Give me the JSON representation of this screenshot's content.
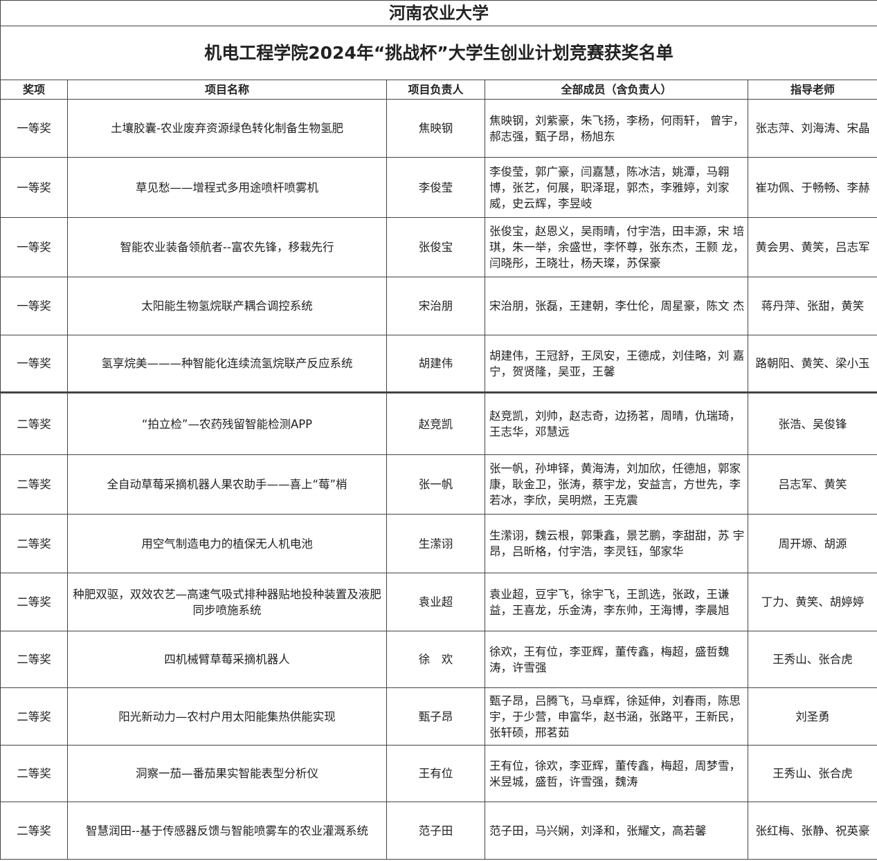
{
  "university": "河南农业大学",
  "title": "机电工程学院2024年“挑战杯”大学生创业计划竞赛获奖名单",
  "headers": [
    "奖项",
    "项目名称",
    "项目负责人",
    "全部成员（含负责人）",
    "指导老师"
  ],
  "rows": [
    {
      "award": "一等奖",
      "project": "土壤胶囊-农业废弃资源绿色转化制备生物氢肥",
      "leader": "焦映钢",
      "members": "焦映钢，刘紫豪，朱飞扬，李杨，何雨轩， 曾宇，郝志强，甄子昂，杨旭东",
      "advisors": "张志萍、刘海涛、宋晶"
    },
    {
      "award": "一等奖",
      "project": "草见愁——增程式多用途喷杆喷雾机",
      "leader": "李俊莹",
      "members": "李俊莹，郭广豪，闫嘉慧，陈冰洁，姚潭，马翱 博，张艺，何展，职泽琨，郭杰，李雅婷，刘家 威，史云辉，李昱岐",
      "advisors": "崔功佩、于畅畅、李赫"
    },
    {
      "award": "一等奖",
      "project": "智能农业装备领航者--富农先锋，移栽先行",
      "leader": "张俊宝",
      "members": "张俊宝，赵恩义，吴雨晴，付宇浩，田丰源，宋 培琪，朱一举，余盛世，李怀尊，张东杰，王颢 龙，闫晓彤，王晓壮，杨天璨，苏保豪",
      "advisors": "黄会男、黄笑，吕志军"
    },
    {
      "award": "一等奖",
      "project": "太阳能生物氢烷联产耦合调控系统",
      "leader": "宋治朋",
      "members": "宋治朋，张磊，王建朝，李仕伦，周星豪，陈文 杰",
      "advisors": "蒋丹萍、张甜，黄笑"
    },
    {
      "award": "一等奖",
      "project": "氢享烷美———种智能化连续流氢烷联产反应系统",
      "leader": "胡建伟",
      "members": "胡建伟，王冠舒，王凤安，王德成，刘佳略，刘 嘉宁，贺贤隆，吴亚，王馨",
      "advisors": "路朝阳、黄笑、梁小玉"
    },
    {
      "award": "二等奖",
      "project": "“拍立检”—农药残留智能检测APP",
      "leader": "赵竞凯",
      "members": "赵竞凯，刘帅，赵志奇，边扬茗，周晴，仇瑞琦，王志华，邓慧远",
      "advisors": "张浩、吴俊锋"
    },
    {
      "award": "二等奖",
      "project": "全自动草莓采摘机器人果农助手——喜上“莓”梢",
      "leader": "张一帆",
      "members": "张一帆，孙坤铎，黄海涛，刘加欣，任德旭，郭家康，耿金卫，张涛，蔡宇龙，安益言，方世先，李若冰，李欣，吴明燃，王克震",
      "advisors": "吕志军、黄笑"
    },
    {
      "award": "二等奖",
      "project": "用空气制造电力的植保无人机电池",
      "leader": "生潆诩",
      "members": "生潆诩，魏云根，郭秉鑫，景艺鹏，李甜甜，苏 宇昂，吕昕格，付宇浩，李灵钰，邹家华",
      "advisors": "周开塬、胡源"
    },
    {
      "award": "二等奖",
      "project": "种肥双驱，双效农艺—高速气吸式排种器贴地投种装置及液肥同步喷施系统",
      "leader": "袁业超",
      "members": "袁业超，豆宇飞，徐宇飞，王凯选，张政，王谦益，王喜龙，乐金涛，李东帅，王海博，李晨旭",
      "advisors": "丁力、黄笑、胡婷婷"
    },
    {
      "award": "二等奖",
      "project": "四机械臂草莓采摘机器人",
      "leader": "徐　欢",
      "members": "徐欢，王有位，李亚辉，董传鑫，梅超，盛哲魏涛，许雪强",
      "advisors": "王秀山、张合虎"
    },
    {
      "award": "二等奖",
      "project": "阳光新动力—农村户用太阳能集热供能实现",
      "leader": "甄子昂",
      "members": "甄子昂，吕腾飞，马卓辉，徐延伸，刘春雨，陈思宇，于少营，申富华，赵书涵，张路平，王新民，张轩硕，邢茗茹",
      "advisors": "刘圣勇"
    },
    {
      "award": "二等奖",
      "project": "洞察一茄—番茄果实智能表型分析仪",
      "leader": "王有位",
      "members": "王有位，徐欢，李亚辉，董传鑫，梅超，周梦雪，米昱城，盛哲，许雪强，魏涛",
      "advisors": "王秀山、张合虎"
    },
    {
      "award": "二等奖",
      "project": "智慧润田--基于传感器反馈与智能喷雾车的农业灌溉系统",
      "leader": "范子田",
      "members": "范子田，马兴娴，刘泽和，张耀文，高若馨",
      "advisors": "张红梅、张静、祝英豪"
    }
  ]
}
